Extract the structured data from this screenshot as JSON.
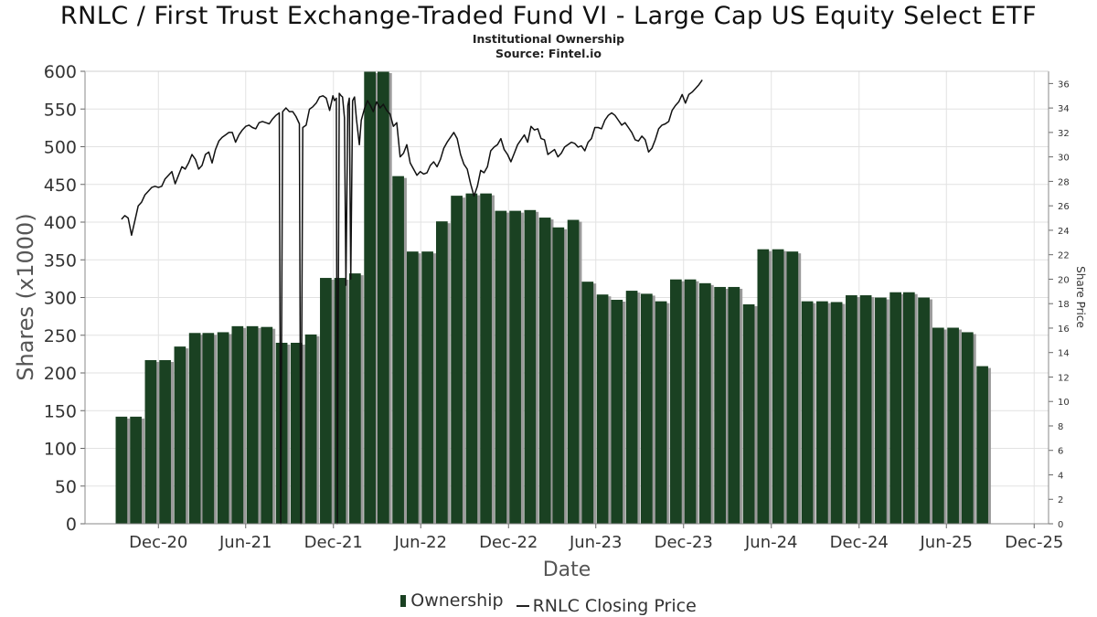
{
  "chart_data": {
    "type": "bar",
    "title": "RNLC / First Trust Exchange-Traded Fund VI - Large Cap US Equity Select ETF",
    "subtitle_lines": [
      "Institutional Ownership",
      "Source: Fintel.io"
    ],
    "xlabel": "Date",
    "ylabel": "Shares (x1000)",
    "y2label": "Share Price",
    "ylim": [
      0,
      600
    ],
    "y2lim": [
      0,
      37
    ],
    "yticks": [
      0,
      50,
      100,
      150,
      200,
      250,
      300,
      350,
      400,
      450,
      500,
      550,
      600
    ],
    "y2ticks": [
      0,
      2,
      4,
      6,
      8,
      10,
      12,
      14,
      16,
      18,
      20,
      22,
      24,
      26,
      28,
      30,
      32,
      34,
      36
    ],
    "xlim": [
      "2020-07-01",
      "2025-12-31"
    ],
    "xticks": [
      {
        "label": "Dec-20",
        "date": "2020-12-01"
      },
      {
        "label": "Jun-21",
        "date": "2021-06-01"
      },
      {
        "label": "Dec-21",
        "date": "2021-12-01"
      },
      {
        "label": "Jun-22",
        "date": "2022-06-01"
      },
      {
        "label": "Dec-22",
        "date": "2022-12-01"
      },
      {
        "label": "Jun-23",
        "date": "2023-06-01"
      },
      {
        "label": "Dec-23",
        "date": "2023-12-01"
      },
      {
        "label": "Jun-24",
        "date": "2024-06-01"
      },
      {
        "label": "Dec-24",
        "date": "2024-12-01"
      },
      {
        "label": "Jun-25",
        "date": "2025-06-01"
      },
      {
        "label": "Dec-25",
        "date": "2025-12-01"
      }
    ],
    "grid": true,
    "legend_position": "bottom-center",
    "bar_color": "#1a4122",
    "bar_shadow_color": "#9a9a9a",
    "line_color": "#111111",
    "series": [
      {
        "name": "Ownership",
        "type": "bar",
        "points": [
          [
            "2020-09-15",
            142
          ],
          [
            "2020-10-15",
            142
          ],
          [
            "2020-11-15",
            217
          ],
          [
            "2020-12-15",
            217
          ],
          [
            "2021-01-15",
            235
          ],
          [
            "2021-02-15",
            253
          ],
          [
            "2021-03-15",
            253
          ],
          [
            "2021-04-15",
            254
          ],
          [
            "2021-05-15",
            262
          ],
          [
            "2021-06-15",
            262
          ],
          [
            "2021-07-15",
            261
          ],
          [
            "2021-08-15",
            240
          ],
          [
            "2021-09-15",
            240
          ],
          [
            "2021-10-15",
            251
          ],
          [
            "2021-11-15",
            326
          ],
          [
            "2021-12-15",
            326
          ],
          [
            "2022-01-15",
            332
          ],
          [
            "2022-02-15",
            600
          ],
          [
            "2022-03-15",
            600
          ],
          [
            "2022-04-15",
            461
          ],
          [
            "2022-05-15",
            361
          ],
          [
            "2022-06-15",
            361
          ],
          [
            "2022-07-15",
            401
          ],
          [
            "2022-08-15",
            435
          ],
          [
            "2022-09-15",
            438
          ],
          [
            "2022-10-15",
            438
          ],
          [
            "2022-11-15",
            415
          ],
          [
            "2022-12-15",
            415
          ],
          [
            "2023-01-15",
            416
          ],
          [
            "2023-02-15",
            406
          ],
          [
            "2023-03-15",
            393
          ],
          [
            "2023-04-15",
            403
          ],
          [
            "2023-05-15",
            321
          ],
          [
            "2023-06-15",
            304
          ],
          [
            "2023-07-15",
            297
          ],
          [
            "2023-08-15",
            309
          ],
          [
            "2023-09-15",
            305
          ],
          [
            "2023-10-15",
            295
          ],
          [
            "2023-11-15",
            324
          ],
          [
            "2023-12-15",
            324
          ],
          [
            "2024-01-15",
            319
          ],
          [
            "2024-02-15",
            314
          ],
          [
            "2024-03-15",
            314
          ],
          [
            "2024-04-15",
            291
          ],
          [
            "2024-05-15",
            364
          ],
          [
            "2024-06-15",
            364
          ],
          [
            "2024-07-15",
            361
          ],
          [
            "2024-08-15",
            295
          ],
          [
            "2024-09-15",
            295
          ],
          [
            "2024-10-15",
            294
          ],
          [
            "2024-11-15",
            303
          ],
          [
            "2024-12-15",
            303
          ],
          [
            "2025-01-15",
            300
          ],
          [
            "2025-02-15",
            307
          ],
          [
            "2025-03-15",
            307
          ],
          [
            "2025-04-15",
            300
          ],
          [
            "2025-05-15",
            260
          ],
          [
            "2025-06-15",
            260
          ],
          [
            "2025-07-15",
            254
          ],
          [
            "2025-08-15",
            209
          ]
        ]
      },
      {
        "name": "RNLC Closing Price",
        "type": "line",
        "axis": "right",
        "points": [
          [
            "2020-09-15",
            24.9
          ],
          [
            "2020-09-22",
            25.2
          ],
          [
            "2020-09-29",
            25.0
          ],
          [
            "2020-10-06",
            23.6
          ],
          [
            "2020-10-13",
            24.8
          ],
          [
            "2020-10-20",
            26.0
          ],
          [
            "2020-10-27",
            26.3
          ],
          [
            "2020-11-03",
            26.9
          ],
          [
            "2020-11-10",
            27.2
          ],
          [
            "2020-11-17",
            27.5
          ],
          [
            "2020-11-24",
            27.6
          ],
          [
            "2020-12-01",
            27.5
          ],
          [
            "2020-12-08",
            27.6
          ],
          [
            "2020-12-15",
            28.2
          ],
          [
            "2020-12-22",
            28.5
          ],
          [
            "2020-12-29",
            28.8
          ],
          [
            "2021-01-05",
            27.8
          ],
          [
            "2021-01-12",
            28.5
          ],
          [
            "2021-01-19",
            29.2
          ],
          [
            "2021-01-26",
            29.0
          ],
          [
            "2021-02-02",
            29.5
          ],
          [
            "2021-02-09",
            30.2
          ],
          [
            "2021-02-16",
            29.8
          ],
          [
            "2021-02-23",
            29.0
          ],
          [
            "2021-03-02",
            29.3
          ],
          [
            "2021-03-09",
            30.2
          ],
          [
            "2021-03-16",
            30.4
          ],
          [
            "2021-03-23",
            29.5
          ],
          [
            "2021-03-30",
            30.6
          ],
          [
            "2021-04-06",
            31.3
          ],
          [
            "2021-04-13",
            31.6
          ],
          [
            "2021-04-20",
            31.8
          ],
          [
            "2021-04-27",
            32.0
          ],
          [
            "2021-05-04",
            32.0
          ],
          [
            "2021-05-11",
            31.2
          ],
          [
            "2021-05-18",
            31.8
          ],
          [
            "2021-05-25",
            32.2
          ],
          [
            "2021-06-01",
            32.5
          ],
          [
            "2021-06-08",
            32.6
          ],
          [
            "2021-06-15",
            32.4
          ],
          [
            "2021-06-22",
            32.3
          ],
          [
            "2021-06-29",
            32.8
          ],
          [
            "2021-07-06",
            32.9
          ],
          [
            "2021-07-13",
            32.8
          ],
          [
            "2021-07-20",
            32.7
          ],
          [
            "2021-07-27",
            33.1
          ],
          [
            "2021-08-03",
            33.4
          ],
          [
            "2021-08-10",
            33.6
          ],
          [
            "2021-08-13",
            0.0
          ],
          [
            "2021-08-17",
            33.7
          ],
          [
            "2021-08-24",
            34.0
          ],
          [
            "2021-08-31",
            33.7
          ],
          [
            "2021-09-07",
            33.7
          ],
          [
            "2021-09-14",
            33.3
          ],
          [
            "2021-09-21",
            32.7
          ],
          [
            "2021-09-24",
            0.0
          ],
          [
            "2021-09-28",
            32.4
          ],
          [
            "2021-10-05",
            32.6
          ],
          [
            "2021-10-12",
            33.9
          ],
          [
            "2021-10-19",
            34.1
          ],
          [
            "2021-10-26",
            34.4
          ],
          [
            "2021-11-02",
            34.9
          ],
          [
            "2021-11-09",
            35.0
          ],
          [
            "2021-11-16",
            34.8
          ],
          [
            "2021-11-23",
            33.8
          ],
          [
            "2021-11-30",
            35.0
          ],
          [
            "2021-12-03",
            34.6
          ],
          [
            "2021-12-07",
            34.8
          ],
          [
            "2021-12-09",
            0.0
          ],
          [
            "2021-12-13",
            35.2
          ],
          [
            "2021-12-17",
            35.0
          ],
          [
            "2021-12-20",
            34.9
          ],
          [
            "2021-12-24",
            33.2
          ],
          [
            "2021-12-27",
            19.5
          ],
          [
            "2021-12-31",
            34.2
          ],
          [
            "2022-01-03",
            34.8
          ],
          [
            "2022-01-06",
            20.0
          ],
          [
            "2022-01-10",
            34.6
          ],
          [
            "2022-01-14",
            34.9
          ],
          [
            "2022-01-18",
            33.1
          ],
          [
            "2022-01-24",
            31.0
          ],
          [
            "2022-01-28",
            33.0
          ],
          [
            "2022-02-04",
            34.0
          ],
          [
            "2022-02-10",
            34.6
          ],
          [
            "2022-02-16",
            34.2
          ],
          [
            "2022-02-22",
            33.7
          ],
          [
            "2022-03-01",
            34.5
          ],
          [
            "2022-03-08",
            34.0
          ],
          [
            "2022-03-15",
            34.3
          ],
          [
            "2022-03-22",
            33.8
          ],
          [
            "2022-03-29",
            33.5
          ],
          [
            "2022-04-05",
            32.5
          ],
          [
            "2022-04-12",
            32.8
          ],
          [
            "2022-04-19",
            30.0
          ],
          [
            "2022-04-26",
            30.3
          ],
          [
            "2022-05-03",
            31.0
          ],
          [
            "2022-05-10",
            29.5
          ],
          [
            "2022-05-17",
            29.0
          ],
          [
            "2022-05-24",
            28.5
          ],
          [
            "2022-05-31",
            28.8
          ],
          [
            "2022-06-07",
            28.6
          ],
          [
            "2022-06-14",
            28.7
          ],
          [
            "2022-06-21",
            29.3
          ],
          [
            "2022-06-28",
            29.6
          ],
          [
            "2022-07-05",
            29.2
          ],
          [
            "2022-07-12",
            29.8
          ],
          [
            "2022-07-19",
            30.7
          ],
          [
            "2022-07-26",
            31.2
          ],
          [
            "2022-08-02",
            31.6
          ],
          [
            "2022-08-09",
            32.0
          ],
          [
            "2022-08-16",
            31.5
          ],
          [
            "2022-08-23",
            30.2
          ],
          [
            "2022-08-30",
            29.4
          ],
          [
            "2022-09-06",
            29.0
          ],
          [
            "2022-09-13",
            27.8
          ],
          [
            "2022-09-20",
            26.8
          ],
          [
            "2022-09-27",
            27.6
          ],
          [
            "2022-10-04",
            28.9
          ],
          [
            "2022-10-11",
            28.7
          ],
          [
            "2022-10-18",
            29.2
          ],
          [
            "2022-10-25",
            30.5
          ],
          [
            "2022-11-01",
            30.8
          ],
          [
            "2022-11-08",
            31.0
          ],
          [
            "2022-11-15",
            31.5
          ],
          [
            "2022-11-22",
            30.6
          ],
          [
            "2022-11-29",
            30.2
          ],
          [
            "2022-12-06",
            29.6
          ],
          [
            "2022-12-13",
            30.3
          ],
          [
            "2022-12-20",
            31.0
          ],
          [
            "2022-12-27",
            31.4
          ],
          [
            "2023-01-03",
            31.8
          ],
          [
            "2023-01-10",
            31.2
          ],
          [
            "2023-01-17",
            32.5
          ],
          [
            "2023-01-24",
            32.2
          ],
          [
            "2023-01-31",
            32.3
          ],
          [
            "2023-02-07",
            31.5
          ],
          [
            "2023-02-14",
            31.4
          ],
          [
            "2023-02-21",
            30.2
          ],
          [
            "2023-02-28",
            30.4
          ],
          [
            "2023-03-07",
            30.6
          ],
          [
            "2023-03-14",
            30.0
          ],
          [
            "2023-03-21",
            30.3
          ],
          [
            "2023-03-28",
            30.8
          ],
          [
            "2023-04-04",
            31.0
          ],
          [
            "2023-04-11",
            31.2
          ],
          [
            "2023-04-18",
            31.1
          ],
          [
            "2023-04-25",
            30.8
          ],
          [
            "2023-05-02",
            30.9
          ],
          [
            "2023-05-09",
            30.5
          ],
          [
            "2023-05-16",
            31.2
          ],
          [
            "2023-05-23",
            31.5
          ],
          [
            "2023-05-30",
            32.4
          ],
          [
            "2023-06-06",
            32.4
          ],
          [
            "2023-06-13",
            32.3
          ],
          [
            "2023-06-20",
            33.0
          ],
          [
            "2023-06-27",
            33.4
          ],
          [
            "2023-07-04",
            33.6
          ],
          [
            "2023-07-11",
            33.4
          ],
          [
            "2023-07-18",
            33.0
          ],
          [
            "2023-07-25",
            32.6
          ],
          [
            "2023-08-01",
            32.8
          ],
          [
            "2023-08-08",
            32.4
          ],
          [
            "2023-08-15",
            32.0
          ],
          [
            "2023-08-22",
            31.4
          ],
          [
            "2023-08-29",
            31.3
          ],
          [
            "2023-09-05",
            31.7
          ],
          [
            "2023-09-12",
            31.4
          ],
          [
            "2023-09-19",
            30.4
          ],
          [
            "2023-09-26",
            30.7
          ],
          [
            "2023-10-03",
            31.4
          ],
          [
            "2023-10-10",
            32.3
          ],
          [
            "2023-10-17",
            32.6
          ],
          [
            "2023-10-24",
            32.7
          ],
          [
            "2023-10-31",
            32.9
          ],
          [
            "2023-11-07",
            33.8
          ],
          [
            "2023-11-14",
            34.2
          ],
          [
            "2023-11-21",
            34.5
          ],
          [
            "2023-11-28",
            35.1
          ],
          [
            "2023-12-05",
            34.4
          ],
          [
            "2023-12-12",
            35.1
          ],
          [
            "2023-12-19",
            35.3
          ],
          [
            "2023-12-26",
            35.6
          ],
          [
            "2024-01-02",
            35.9
          ],
          [
            "2024-01-09",
            36.3
          ]
        ]
      }
    ]
  }
}
